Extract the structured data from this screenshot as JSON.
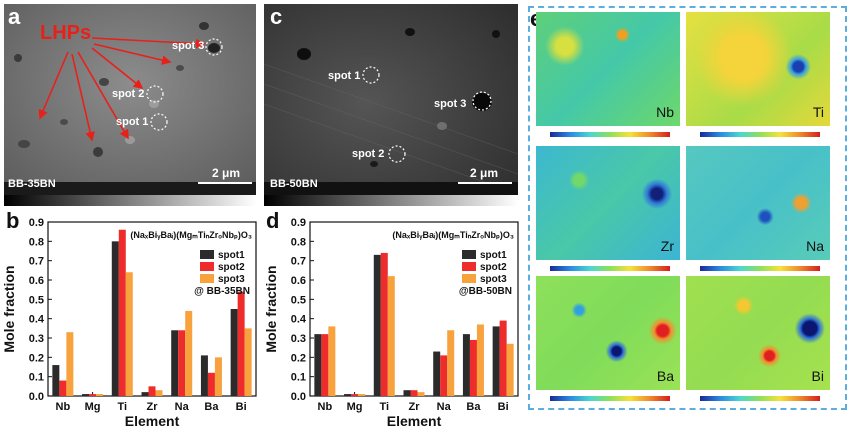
{
  "panels": {
    "a": {
      "letter": "a",
      "annotation": "LHPs",
      "sample": "BB-35BN",
      "scale": "2 μm",
      "spots": [
        "spot 3",
        "spot 2",
        "spot 1"
      ]
    },
    "c": {
      "letter": "c",
      "sample": "BB-50BN",
      "scale": "2 μm",
      "spots": [
        "spot 1",
        "spot 3",
        "spot 2"
      ]
    },
    "e": {
      "letter": "e",
      "maps": [
        "Nb",
        "Ti",
        "Zr",
        "Na",
        "Ba",
        "Bi"
      ]
    }
  },
  "colors": {
    "spot1": "#2b2b2b",
    "spot2": "#ee2c2c",
    "spot3": "#f7a23c",
    "annotation": "#e8201a",
    "frame": "#5aaee0"
  },
  "chart_data": [
    {
      "id": "b",
      "type": "bar",
      "letter": "b",
      "formula": "(NaₓBiᵧBaᵢ)(MgₘTiₙZrₒNbₚ)O₃",
      "sample_label": "@ BB-35BN",
      "xlabel": "Element",
      "ylabel": "Mole fraction",
      "ylim": [
        0,
        0.9
      ],
      "yticks": [
        "0.0",
        "0.1",
        "0.2",
        "0.3",
        "0.4",
        "0.5",
        "0.6",
        "0.7",
        "0.8",
        "0.9"
      ],
      "categories": [
        "Nb",
        "Mg",
        "Ti",
        "Zr",
        "Na",
        "Ba",
        "Bi"
      ],
      "series": [
        {
          "name": "spot1",
          "values": [
            0.16,
            0.01,
            0.8,
            0.02,
            0.34,
            0.21,
            0.45
          ]
        },
        {
          "name": "spot2",
          "values": [
            0.08,
            0.01,
            0.86,
            0.05,
            0.34,
            0.12,
            0.54
          ]
        },
        {
          "name": "spot3",
          "values": [
            0.33,
            0.01,
            0.64,
            0.03,
            0.44,
            0.2,
            0.35
          ]
        }
      ],
      "legend": "top-right"
    },
    {
      "id": "d",
      "type": "bar",
      "letter": "d",
      "formula": "(NaₓBiᵧBaᵢ)(MgₘTiₙZrₒNbₚ)O₃",
      "sample_label": "@BB-50BN",
      "xlabel": "Element",
      "ylabel": "Mole fraction",
      "ylim": [
        0,
        0.9
      ],
      "yticks": [
        "0.0",
        "0.1",
        "0.2",
        "0.3",
        "0.4",
        "0.5",
        "0.6",
        "0.7",
        "0.8",
        "0.9"
      ],
      "categories": [
        "Nb",
        "Mg",
        "Ti",
        "Zr",
        "Na",
        "Ba",
        "Bi"
      ],
      "series": [
        {
          "name": "spot1",
          "values": [
            0.32,
            0.01,
            0.73,
            0.03,
            0.23,
            0.32,
            0.36
          ]
        },
        {
          "name": "spot2",
          "values": [
            0.32,
            0.01,
            0.74,
            0.03,
            0.21,
            0.29,
            0.39
          ]
        },
        {
          "name": "spot3",
          "values": [
            0.36,
            0.01,
            0.62,
            0.02,
            0.34,
            0.37,
            0.27
          ]
        }
      ],
      "legend": "top-right"
    }
  ]
}
